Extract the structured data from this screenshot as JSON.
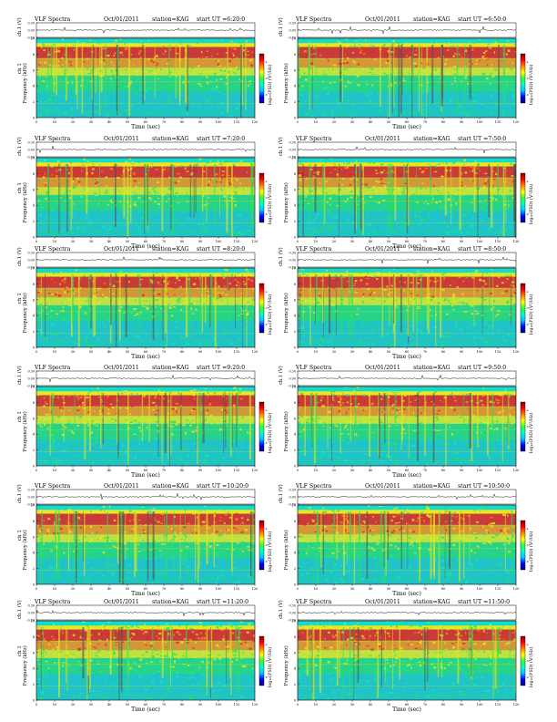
{
  "page": {
    "background": "#ffffff"
  },
  "colors": {
    "ink": "#000000",
    "spec_cold": "#1fc3c8",
    "spec_cool": "#19e6b4",
    "spec_green": "#2ee05a",
    "spec_yellow": "#e8e81e",
    "spec_orange": "#ff8c14",
    "spec_red": "#e8231e",
    "spec_dark": "#505050",
    "spec_band_top": "#16d9cf",
    "colorbar_stops": [
      "#000080",
      "#0000ff",
      "#00c8ff",
      "#00ffc8",
      "#32ff32",
      "#ffff00",
      "#ff8000",
      "#ff0000",
      "#800000"
    ]
  },
  "panels": [
    {
      "col": 0,
      "row": 0,
      "header": {
        "title": "VLF Spectra",
        "date": "Oct/01/2011",
        "station": "station=KAG",
        "start": "start  UT =6:20:0"
      },
      "ylabel_ch": "ch.1 (V)",
      "ylabel_freq": "Frequency (kHz)",
      "ch_ylabel": "ch 1",
      "xlabel": "Time (sec)",
      "colorbar_label": "log₁₀(PSD) (V²/Hz)"
    },
    {
      "col": 1,
      "row": 0,
      "header": {
        "title": "VLF Spectra",
        "date": "Oct/01/2011",
        "station": "station=KAG",
        "start": "start  UT =6:50:0"
      },
      "ylabel_ch": "ch.1 (V)",
      "ylabel_freq": "Frequency (kHz)",
      "ch_ylabel": "",
      "xlabel": "Time (sec)",
      "colorbar_label": "log₁₀(PSD) (V²/Hz)"
    },
    {
      "col": 0,
      "row": 1,
      "header": {
        "title": "VLF Spectra",
        "date": "Oct/01/2011",
        "station": "station=KAG",
        "start": "start  UT =7:20:0"
      },
      "ylabel_ch": "ch.1 (V)",
      "ylabel_freq": "Frequency (kHz)",
      "ch_ylabel": "ch 1",
      "xlabel": "Time (sec)",
      "colorbar_label": "log₁₀(PSD) (V²/Hz)"
    },
    {
      "col": 1,
      "row": 1,
      "header": {
        "title": "VLF Spectra",
        "date": "Oct/01/2011",
        "station": "station=KAG",
        "start": "start  UT =7:50:0"
      },
      "ylabel_ch": "ch.1 (V)",
      "ylabel_freq": "Frequency (kHz)",
      "ch_ylabel": "",
      "xlabel": "Time (sec)",
      "colorbar_label": "log₁₀(PSD) (V²/Hz)"
    },
    {
      "col": 0,
      "row": 2,
      "header": {
        "title": "VLF Spectra",
        "date": "Oct/01/2011",
        "station": "station=KAG",
        "start": "start  UT =8:20:0"
      },
      "ylabel_ch": "ch.1 (V)",
      "ylabel_freq": "Frequency (kHz)",
      "ch_ylabel": "ch 1",
      "xlabel": "Time (sec)",
      "colorbar_label": "log₁₀(PSD) (V²/Hz)"
    },
    {
      "col": 1,
      "row": 2,
      "header": {
        "title": "VLF Spectra",
        "date": "Oct/01/2011",
        "station": "station=KAG",
        "start": "start  UT =8:50:0"
      },
      "ylabel_ch": "ch.1 (V)",
      "ylabel_freq": "Frequency (kHz)",
      "ch_ylabel": "",
      "xlabel": "Time (sec)",
      "colorbar_label": "log₁₀(PSD) (V²/Hz)"
    },
    {
      "col": 0,
      "row": 3,
      "header": {
        "title": "VLF Spectra",
        "date": "Oct/01/2011",
        "station": "station=KAG",
        "start": "start  UT =9:20:0"
      },
      "ylabel_ch": "ch.1 (V)",
      "ylabel_freq": "Frequency (kHz)",
      "ch_ylabel": "ch 1",
      "xlabel": "Time (sec)",
      "colorbar_label": "log₁₀(PSD) (V²/Hz)"
    },
    {
      "col": 1,
      "row": 3,
      "header": {
        "title": "VLF Spectra",
        "date": "Oct/01/2011",
        "station": "station=KAG",
        "start": "start  UT =9:50:0"
      },
      "ylabel_ch": "ch.1 (V)",
      "ylabel_freq": "Frequency (kHz)",
      "ch_ylabel": "",
      "xlabel": "Time (sec)",
      "colorbar_label": "log₁₀(PSD) (V²/Hz)"
    },
    {
      "col": 0,
      "row": 4,
      "header": {
        "title": "VLF Spectra",
        "date": "Oct/01/2011",
        "station": "station=KAG",
        "start": "start  UT =10:20:0"
      },
      "ylabel_ch": "ch.1 (V)",
      "ylabel_freq": "Frequency (kHz)",
      "ch_ylabel": "ch 1",
      "xlabel": "Time (sec)",
      "colorbar_label": "log₁₀(PSD) (V²/Hz)"
    },
    {
      "col": 1,
      "row": 4,
      "header": {
        "title": "VLF Spectra",
        "date": "Oct/01/2011",
        "station": "station=KAG",
        "start": "start  UT =10:50:0"
      },
      "ylabel_ch": "ch.1 (V)",
      "ylabel_freq": "Frequency (kHz)",
      "ch_ylabel": "",
      "xlabel": "Time (sec)",
      "colorbar_label": "log₁₀(PSD) (V²/Hz)"
    },
    {
      "col": 0,
      "row": 5,
      "header": {
        "title": "VLF Spectra",
        "date": "Oct/01/2011",
        "station": "station=KAG",
        "start": "start  UT =11:20:0"
      },
      "ylabel_ch": "ch.1 (V)",
      "ylabel_freq": "Frequency (kHz)",
      "ch_ylabel": "ch 1",
      "xlabel": "Time (sec)",
      "colorbar_label": "log₁₀(PSD) (V²/Hz)"
    },
    {
      "col": 1,
      "row": 5,
      "header": {
        "title": "VLF Spectra",
        "date": "Oct/01/2011",
        "station": "station=KAG",
        "start": "start  UT =11:50:0"
      },
      "ylabel_ch": "ch.1 (V)",
      "ylabel_freq": "Frequency (kHz)",
      "ch_ylabel": "",
      "xlabel": "Time (sec)",
      "colorbar_label": "log₁₀(PSD) (V²/Hz)"
    }
  ],
  "chart_data": {
    "type": "heatmap",
    "title": "VLF Spectra",
    "xlabel": "Time (sec)",
    "ylabel": "Frequency (kHz)",
    "x_ticks": [
      "0",
      "10",
      "20",
      "30",
      "40",
      "50",
      "60",
      "70",
      "80",
      "90",
      "100",
      "110",
      "120"
    ],
    "xlim": [
      0,
      120
    ],
    "freq_ticks": [
      "0",
      "2",
      "4",
      "6",
      "8",
      "10"
    ],
    "ylim": [
      0,
      10
    ],
    "ch_ticks": [
      "-0.30",
      "0.00",
      "0.30"
    ],
    "ch_ylim": [
      -0.3,
      0.3
    ],
    "colorbar_ticks": [
      "-4",
      "-6",
      "-8"
    ],
    "colorbar_range": [
      -9,
      -3
    ],
    "grid": false,
    "panels": 12,
    "start_times_ut": [
      "6:20:0",
      "6:50:0",
      "7:20:0",
      "7:50:0",
      "8:20:0",
      "8:50:0",
      "9:20:0",
      "9:50:0",
      "10:20:0",
      "10:50:0",
      "11:20:0",
      "11:50:0"
    ]
  }
}
